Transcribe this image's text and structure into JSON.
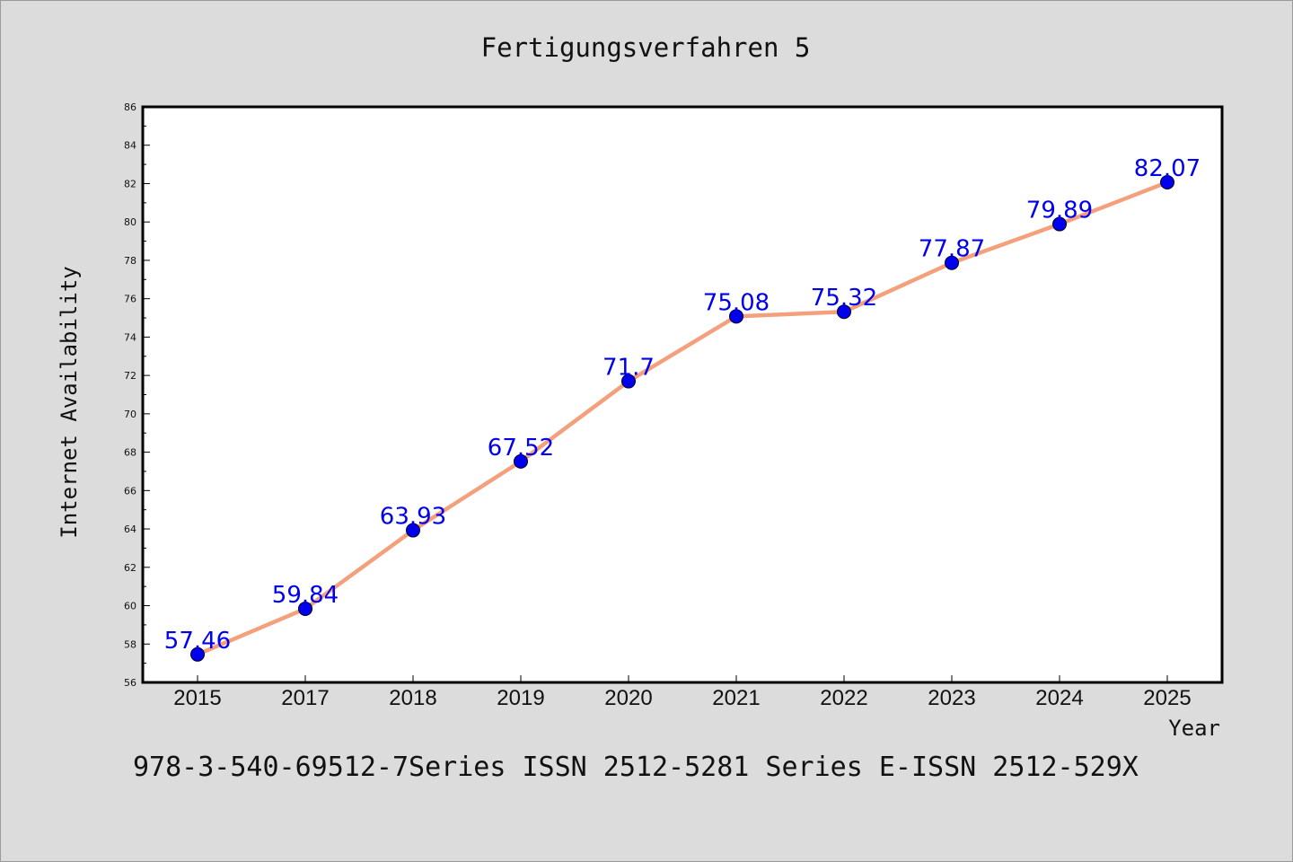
{
  "chart_data": {
    "type": "line",
    "title": "Fertigungsverfahren 5",
    "xlabel": "Year",
    "ylabel": "Internet Availability",
    "categories": [
      "2015",
      "2017",
      "2018",
      "2019",
      "2020",
      "2021",
      "2022",
      "2023",
      "2024",
      "2025"
    ],
    "series": [
      {
        "values": [
          57.46,
          59.84,
          63.93,
          67.52,
          71.7,
          75.08,
          75.32,
          77.87,
          79.89,
          82.07
        ],
        "labels": [
          "57.46",
          "59.84",
          "63.93",
          "67.52",
          "71.7",
          "75.08",
          "75.32",
          "77.87",
          "79.89",
          "82.07"
        ],
        "line_color": "#f4a07c",
        "marker_color": "#0000ee",
        "label_color": "#0000ee"
      }
    ],
    "ylim": [
      56,
      86
    ],
    "yticks": [
      "56",
      "58",
      "60",
      "62",
      "64",
      "66",
      "68",
      "70",
      "72",
      "74",
      "76",
      "78",
      "80",
      "82",
      "84",
      "86"
    ],
    "grid": false,
    "legend": "none"
  },
  "footer_text": "978-3-540-69512-7Series ISSN 2512-5281 Series E-ISSN 2512-529X",
  "colors": {
    "background": "#dcdcdc",
    "plot_background": "#ffffff",
    "axis": "#000000"
  }
}
